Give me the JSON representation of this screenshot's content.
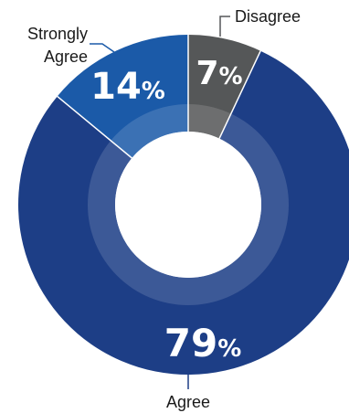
{
  "chart_data": {
    "type": "pie",
    "style": "donut",
    "title": "",
    "slices": [
      {
        "label": "Disagree",
        "value": 7,
        "value_label": "7%",
        "color": "#555758"
      },
      {
        "label": "Agree",
        "value": 79,
        "value_label": "79%",
        "color": "#1d3e86"
      },
      {
        "label": "Strongly Agree",
        "value": 14,
        "value_label": "14%",
        "color": "#1b5aa8"
      }
    ]
  },
  "labels": {
    "disagree": "Disagree",
    "strongly_agree_line1": "Strongly",
    "strongly_agree_line2": "Agree",
    "agree": "Agree"
  },
  "colors": {
    "leader_line": "#1b5aa8",
    "inner_ring": "#ffffff",
    "divider": "#ffffff"
  }
}
